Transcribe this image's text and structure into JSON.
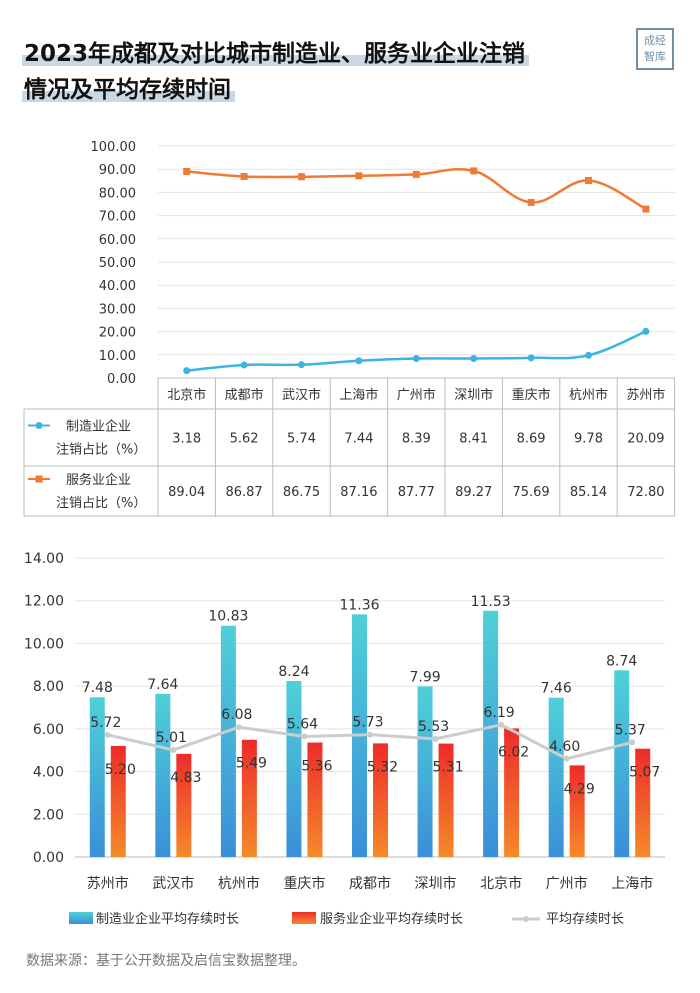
{
  "title": {
    "line1": "2023年成都及对比城市制造业、服务业企业注销",
    "line2": "情况及平均存续时间"
  },
  "seal": {
    "line1": "成经",
    "line2": "智库"
  },
  "source": "数据来源：基于公开数据及启信宝数据整理。",
  "colors": {
    "manufacturing_line": "#3db3e3",
    "service_line": "#f07a35",
    "bar_manufacturing_top": "#4fd0d8",
    "bar_manufacturing_bottom": "#3a8fd8",
    "bar_service_top": "#ee2b2b",
    "bar_service_bottom": "#f58a2a",
    "avg_line": "#cccccc"
  },
  "chart_data": [
    {
      "type": "line",
      "categories": [
        "北京市",
        "成都市",
        "武汉市",
        "上海市",
        "广州市",
        "深圳市",
        "重庆市",
        "杭州市",
        "苏州市"
      ],
      "ylim": [
        0,
        100
      ],
      "yticks": [
        "0.00",
        "10.00",
        "20.00",
        "30.00",
        "40.00",
        "50.00",
        "60.00",
        "70.00",
        "80.00",
        "90.00",
        "100.00"
      ],
      "series": [
        {
          "name": "制造业企业注销占比（%）",
          "values": [
            3.18,
            5.62,
            5.74,
            7.44,
            8.39,
            8.41,
            8.69,
            9.78,
            20.09
          ],
          "labels": [
            "3.18",
            "5.62",
            "5.74",
            "7.44",
            "8.39",
            "8.41",
            "8.69",
            "9.78",
            "20.09"
          ]
        },
        {
          "name": "服务业企业注销占比（%）",
          "values": [
            89.04,
            86.87,
            86.75,
            87.16,
            87.77,
            89.27,
            75.69,
            85.14,
            72.8
          ],
          "labels": [
            "89.04",
            "86.87",
            "86.75",
            "87.16",
            "87.77",
            "89.27",
            "75.69",
            "85.14",
            "72.80"
          ]
        }
      ],
      "legend_placement": "data-table"
    },
    {
      "type": "bar",
      "categories": [
        "苏州市",
        "武汉市",
        "杭州市",
        "重庆市",
        "成都市",
        "深圳市",
        "北京市",
        "广州市",
        "上海市"
      ],
      "ylim": [
        0,
        14
      ],
      "yticks": [
        "0.00",
        "2.00",
        "4.00",
        "6.00",
        "8.00",
        "10.00",
        "12.00",
        "14.00"
      ],
      "series": [
        {
          "name": "制造业企业平均存续时长",
          "values": [
            7.48,
            7.64,
            10.83,
            8.24,
            11.36,
            7.99,
            11.53,
            7.46,
            8.74
          ],
          "labels": [
            "7.48",
            "7.64",
            "10.83",
            "8.24",
            "11.36",
            "7.99",
            "11.53",
            "7.46",
            "8.74"
          ]
        },
        {
          "name": "服务业企业平均存续时长",
          "values": [
            5.2,
            4.83,
            5.49,
            5.36,
            5.32,
            5.31,
            6.02,
            4.29,
            5.07
          ],
          "labels": [
            "5.20",
            "4.83",
            "5.49",
            "5.36",
            "5.32",
            "5.31",
            "6.02",
            "4.29",
            "5.07"
          ]
        },
        {
          "name": "平均存续时长",
          "type": "line",
          "values": [
            5.72,
            5.01,
            6.08,
            5.64,
            5.73,
            5.53,
            6.19,
            4.6,
            5.37
          ],
          "labels": [
            "5.72",
            "5.01",
            "6.08",
            "5.64",
            "5.73",
            "5.53",
            "6.19",
            "4.60",
            "5.37"
          ]
        }
      ],
      "legend_placement": "bottom"
    }
  ]
}
